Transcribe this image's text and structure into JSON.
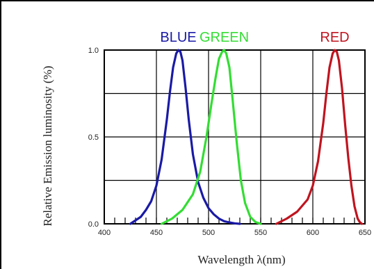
{
  "chart_data": {
    "type": "line",
    "xlabel": "Wavelength λ(nm)",
    "ylabel": "Relative Emission luminosity (%)",
    "xlim": [
      400,
      650
    ],
    "ylim": [
      0,
      1.0
    ],
    "x_ticks": [
      "400",
      "450",
      "500",
      "550",
      "600",
      "650"
    ],
    "y_ticks": [
      "0.0",
      "0.5",
      "1.0"
    ],
    "grid": true,
    "series": [
      {
        "name": "BLUE",
        "color": "#1a1aa6",
        "x": [
          425,
          430,
          435,
          440,
          445,
          450,
          455,
          460,
          463,
          466,
          469,
          471,
          473,
          475,
          478,
          481,
          485,
          490,
          495,
          500,
          505,
          510,
          515,
          520,
          525,
          530
        ],
        "y": [
          0.0,
          0.02,
          0.04,
          0.08,
          0.13,
          0.22,
          0.37,
          0.6,
          0.76,
          0.9,
          0.98,
          1.0,
          0.99,
          0.94,
          0.78,
          0.6,
          0.4,
          0.24,
          0.15,
          0.09,
          0.055,
          0.03,
          0.015,
          0.008,
          0.003,
          0.0
        ]
      },
      {
        "name": "GREEN",
        "color": "#33dd33",
        "x": [
          455,
          465,
          475,
          485,
          492,
          498,
          503,
          507,
          510,
          513,
          515,
          517,
          520,
          523,
          527,
          531,
          535,
          540,
          545,
          550
        ],
        "y": [
          0.0,
          0.03,
          0.08,
          0.17,
          0.3,
          0.5,
          0.7,
          0.85,
          0.95,
          0.99,
          1.0,
          0.98,
          0.9,
          0.72,
          0.47,
          0.25,
          0.12,
          0.04,
          0.01,
          0.0
        ]
      },
      {
        "name": "RED",
        "color": "#c0141f",
        "x": [
          565,
          575,
          585,
          595,
          600,
          605,
          610,
          613,
          616,
          619,
          621,
          623,
          625,
          628,
          631,
          634,
          637,
          640,
          643,
          645,
          647
        ],
        "y": [
          0.0,
          0.03,
          0.07,
          0.14,
          0.22,
          0.36,
          0.58,
          0.75,
          0.9,
          0.98,
          1.0,
          0.99,
          0.94,
          0.78,
          0.57,
          0.38,
          0.22,
          0.1,
          0.03,
          0.01,
          0.0
        ]
      }
    ]
  }
}
